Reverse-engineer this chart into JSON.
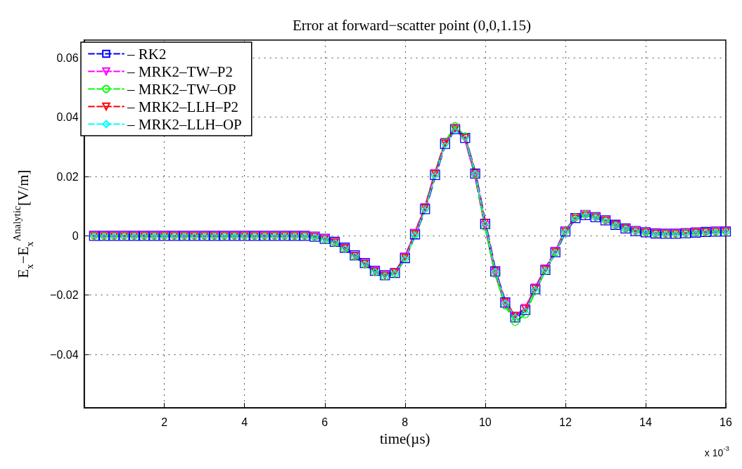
{
  "chart_data": {
    "type": "line",
    "title": "Error at forward−scatter point (0,0,1.15)",
    "xlabel": "time(µs)",
    "ylabel": "E$_{x}$−E$_{x}$$^{Analytic}$[V/m]",
    "annotations": [
      "x 10$^{-3}$"
    ],
    "x": [
      0.25,
      0.5,
      0.75,
      1,
      1.25,
      1.5,
      1.75,
      2,
      2.25,
      2.5,
      2.75,
      3,
      3.25,
      3.5,
      3.75,
      4,
      4.25,
      4.5,
      4.75,
      5,
      5.25,
      5.5,
      5.75,
      6,
      6.25,
      6.5,
      6.75,
      7,
      7.25,
      7.5,
      7.75,
      8,
      8.25,
      8.5,
      8.75,
      9,
      9.25,
      9.5,
      9.75,
      10,
      10.25,
      10.5,
      10.75,
      11,
      11.25,
      11.5,
      11.75,
      12,
      12.25,
      12.5,
      12.75,
      13,
      13.25,
      13.5,
      13.75,
      14,
      14.25,
      14.5,
      14.75,
      15,
      15.25,
      15.5,
      15.75,
      16
    ],
    "series": [
      {
        "name": "– RK2",
        "color": "#0000ff",
        "marker": "square",
        "values": [
          0,
          0,
          0,
          0,
          0,
          0,
          0,
          0,
          0,
          0,
          0,
          0,
          0,
          0,
          0,
          0,
          0,
          0,
          0,
          0,
          0,
          0,
          -0.0003,
          -0.001,
          -0.002,
          -0.004,
          -0.0066,
          -0.0092,
          -0.0118,
          -0.0133,
          -0.0125,
          -0.0075,
          0.0005,
          0.009,
          0.0205,
          0.031,
          0.036,
          0.033,
          0.021,
          0.004,
          -0.012,
          -0.0225,
          -0.0275,
          -0.025,
          -0.018,
          -0.0115,
          -0.0055,
          0.0015,
          0.006,
          0.007,
          0.0063,
          0.0052,
          0.0037,
          0.0025,
          0.0016,
          0.0012,
          0.0008,
          0.0007,
          0.0007,
          0.0009,
          0.0011,
          0.0013,
          0.0014,
          0.0015
        ]
      },
      {
        "name": "– MRK2–TW–P2",
        "color": "#ff00ff",
        "marker": "triangle",
        "values": [
          0,
          0,
          0,
          0,
          0,
          0,
          0,
          0,
          0,
          0,
          0,
          0,
          0,
          0,
          0,
          0,
          0,
          0,
          0,
          0,
          0,
          0,
          -0.0003,
          -0.001,
          -0.0022,
          -0.0042,
          -0.0068,
          -0.0094,
          -0.012,
          -0.0134,
          -0.0124,
          -0.0072,
          0.0008,
          0.0095,
          0.021,
          0.0315,
          0.0362,
          0.0328,
          0.0205,
          0.0035,
          -0.0125,
          -0.023,
          -0.0272,
          -0.0245,
          -0.0176,
          -0.0112,
          -0.0053,
          0.0016,
          0.006,
          0.0071,
          0.0063,
          0.0051,
          0.0036,
          0.0024,
          0.0016,
          0.0011,
          0.0008,
          0.0007,
          0.0007,
          0.0009,
          0.0011,
          0.0012,
          0.0014,
          0.0015
        ]
      },
      {
        "name": "– MRK2–TW–OP",
        "color": "#00ff00",
        "marker": "circle",
        "values": [
          0,
          0,
          0,
          0,
          0,
          0,
          0,
          0,
          0,
          0,
          0,
          0,
          0,
          0,
          0,
          0,
          0,
          0,
          0,
          0,
          0,
          0,
          -0.0004,
          -0.0012,
          -0.0023,
          -0.0043,
          -0.0069,
          -0.0096,
          -0.0122,
          -0.0137,
          -0.0127,
          -0.0076,
          0.0004,
          0.0092,
          0.0208,
          0.0315,
          0.037,
          0.0335,
          0.0208,
          0.003,
          -0.0128,
          -0.0235,
          -0.029,
          -0.0265,
          -0.0185,
          -0.0118,
          -0.0056,
          0.0016,
          0.0062,
          0.0072,
          0.0064,
          0.0052,
          0.0037,
          0.0025,
          0.0016,
          0.0012,
          0.0008,
          0.0007,
          0.0007,
          0.0009,
          0.0011,
          0.0013,
          0.0014,
          0.0015
        ]
      },
      {
        "name": "– MRK2–LLH–P2",
        "color": "#ff0000",
        "marker": "triangle",
        "values": [
          0,
          0,
          0,
          0,
          0,
          0,
          0,
          0,
          0,
          0,
          0,
          0,
          0,
          0,
          0,
          0,
          0,
          0,
          0,
          0,
          0,
          0,
          -0.0003,
          -0.001,
          -0.0021,
          -0.0041,
          -0.0067,
          -0.0093,
          -0.0119,
          -0.0133,
          -0.0122,
          -0.0073,
          0.0007,
          0.0094,
          0.021,
          0.0312,
          0.0361,
          0.0332,
          0.0212,
          0.0045,
          -0.0118,
          -0.0222,
          -0.0268,
          -0.0245,
          -0.0178,
          -0.0113,
          -0.0054,
          0.0015,
          0.0059,
          0.0069,
          0.0063,
          0.0052,
          0.0037,
          0.0025,
          0.0016,
          0.0012,
          0.0008,
          0.0007,
          0.0007,
          0.0009,
          0.0011,
          0.0013,
          0.0014,
          0.0015
        ]
      },
      {
        "name": "– MRK2–LLH–OP",
        "color": "#00ffff",
        "marker": "diamond",
        "values": [
          0,
          0,
          0,
          0,
          0,
          0,
          0,
          0,
          0,
          0,
          0,
          0,
          0,
          0,
          0,
          0,
          0,
          0,
          0,
          0,
          0,
          0,
          -0.0003,
          -0.0011,
          -0.0022,
          -0.0042,
          -0.0067,
          -0.0093,
          -0.0119,
          -0.0134,
          -0.0126,
          -0.0077,
          0.0002,
          0.0088,
          0.0203,
          0.0305,
          0.0355,
          0.033,
          0.0212,
          0.0042,
          -0.0118,
          -0.0225,
          -0.0272,
          -0.0252,
          -0.0182,
          -0.0116,
          -0.0055,
          0.0014,
          0.0059,
          0.0069,
          0.0063,
          0.0052,
          0.0037,
          0.0025,
          0.0016,
          0.0012,
          0.0008,
          0.0007,
          0.0007,
          0.0009,
          0.0011,
          0.0013,
          0.0014,
          0.0015
        ]
      }
    ],
    "xlim": [
      0,
      16
    ],
    "ylim": [
      -0.058,
      0.066
    ],
    "xticks": [
      2,
      4,
      6,
      8,
      10,
      12,
      14,
      16
    ],
    "yticks": [
      -0.04,
      -0.02,
      0,
      0.02,
      0.04,
      0.06
    ],
    "grid": true,
    "legend": "top left",
    "line_style": "dashed"
  }
}
